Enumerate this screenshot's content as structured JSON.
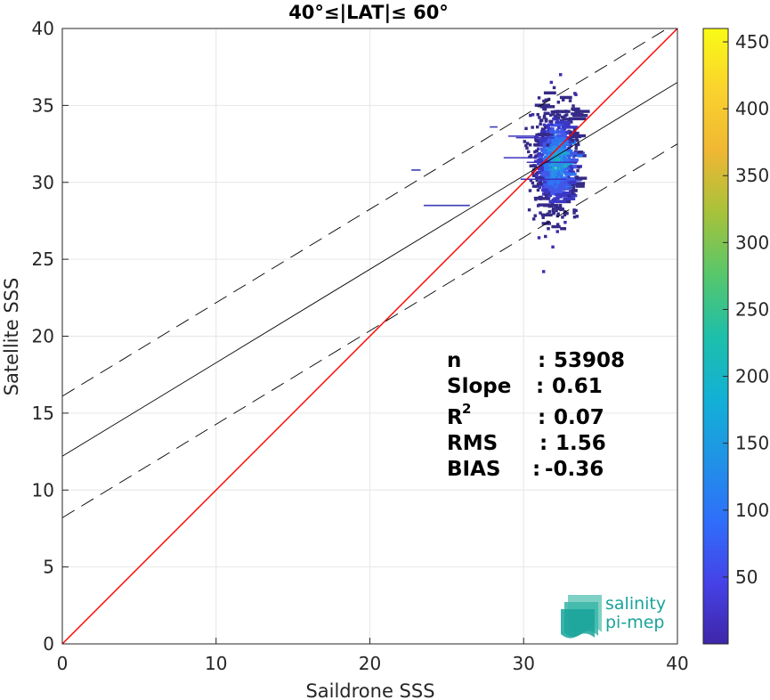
{
  "chart_data": {
    "type": "scatter",
    "subtype": "2d-histogram-density",
    "title": "40°≤|LAT|≤ 60°",
    "xlabel": "Saildrone SSS",
    "ylabel": "Satellite SSS",
    "xlim": [
      0,
      40
    ],
    "ylim": [
      0,
      40
    ],
    "x_ticks": [
      "0",
      "10",
      "20",
      "30",
      "40"
    ],
    "y_ticks": [
      "0",
      "5",
      "10",
      "15",
      "20",
      "25",
      "30",
      "35",
      "40"
    ],
    "grid": true,
    "colorbar": {
      "range": [
        0,
        460
      ],
      "ticks": [
        "50",
        "100",
        "150",
        "200",
        "250",
        "300",
        "350",
        "400",
        "450"
      ],
      "colormap": "parula"
    },
    "lines": [
      {
        "role": "identity",
        "color": "#ff0000",
        "style": "solid",
        "x": [
          0,
          40
        ],
        "y": [
          0,
          40
        ]
      },
      {
        "role": "regression",
        "color": "#000000",
        "style": "solid",
        "x": [
          0,
          40
        ],
        "y": [
          12.2,
          36.5
        ]
      },
      {
        "role": "upper-bound",
        "color": "#000000",
        "style": "dashed",
        "x": [
          0,
          40
        ],
        "y": [
          16.1,
          40.4
        ]
      },
      {
        "role": "lower-bound",
        "color": "#000000",
        "style": "dashed",
        "x": [
          0,
          40
        ],
        "y": [
          8.2,
          32.5
        ]
      }
    ],
    "density_cluster": {
      "center": [
        32.0,
        31.5
      ],
      "x_range": [
        29.0,
        33.5
      ],
      "y_range": [
        26.0,
        37.5
      ],
      "peak_count": 150
    },
    "outlier_segments": [
      {
        "x": [
          23.5,
          26.5
        ],
        "y": 28.5
      },
      {
        "x": [
          22.7,
          23.3
        ],
        "y": 30.8
      },
      {
        "x": [
          27.8,
          28.3
        ],
        "y": 33.6
      }
    ],
    "stats": {
      "n": "53908",
      "slope": "0.61",
      "r2": "0.07",
      "rms": "1.56",
      "bias": "-0.36"
    },
    "stat_labels": {
      "n": "n",
      "slope": "Slope",
      "r2": "R",
      "r2_sup": "2",
      "rms": "RMS",
      "bias": "BIAS"
    }
  },
  "logo": {
    "line1": "salinity",
    "line2": "pi-mep",
    "color": "#1aa39a"
  }
}
